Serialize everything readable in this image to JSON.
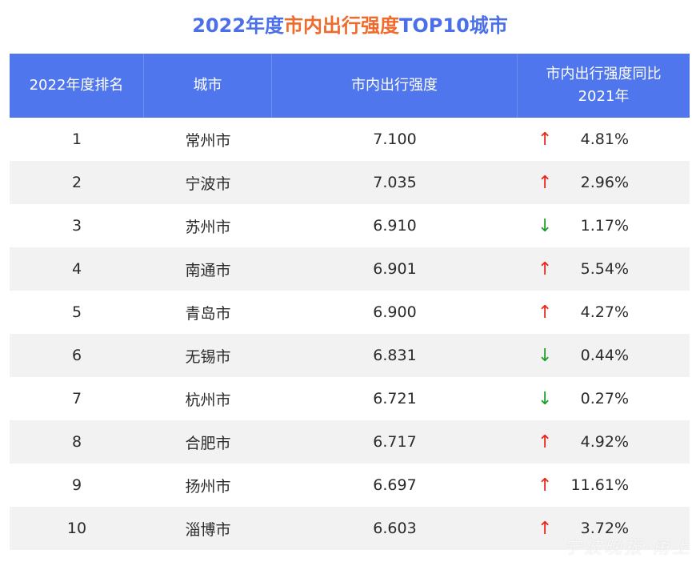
{
  "title": {
    "part1": "2022年度",
    "part2": "市内出行强度",
    "part3": "TOP10城市"
  },
  "colors": {
    "header_bg": "#4f76ec",
    "title_blue": "#4a6fe8",
    "title_orange": "#ef6b2c",
    "up": "#e8271a",
    "down": "#1e9e2a",
    "row_stripe": "#f2f2f2"
  },
  "headers": {
    "rank": "2022年度排名",
    "city": "城市",
    "intensity": "市内出行强度",
    "change_line1": "市内出行强度同比",
    "change_line2": "2021年"
  },
  "arrows": {
    "up": "↑",
    "down": "↓"
  },
  "chart_data": {
    "type": "table",
    "title": "2022年度市内出行强度TOP10城市",
    "columns": [
      "2022年度排名",
      "城市",
      "市内出行强度",
      "市内出行强度同比2021年"
    ],
    "rows": [
      {
        "rank": "1",
        "city": "常州市",
        "intensity": "7.100",
        "direction": "up",
        "change": "4.81%"
      },
      {
        "rank": "2",
        "city": "宁波市",
        "intensity": "7.035",
        "direction": "up",
        "change": "2.96%"
      },
      {
        "rank": "3",
        "city": "苏州市",
        "intensity": "6.910",
        "direction": "down",
        "change": "1.17%"
      },
      {
        "rank": "4",
        "city": "南通市",
        "intensity": "6.901",
        "direction": "up",
        "change": "5.54%"
      },
      {
        "rank": "5",
        "city": "青岛市",
        "intensity": "6.900",
        "direction": "up",
        "change": "4.27%"
      },
      {
        "rank": "6",
        "city": "无锡市",
        "intensity": "6.831",
        "direction": "down",
        "change": "0.44%"
      },
      {
        "rank": "7",
        "city": "杭州市",
        "intensity": "6.721",
        "direction": "down",
        "change": "0.27%"
      },
      {
        "rank": "8",
        "city": "合肥市",
        "intensity": "6.717",
        "direction": "up",
        "change": "4.92%"
      },
      {
        "rank": "9",
        "city": "扬州市",
        "intensity": "6.697",
        "direction": "up",
        "change": "11.61%"
      },
      {
        "rank": "10",
        "city": "淄博市",
        "intensity": "6.603",
        "direction": "up",
        "change": "3.72%"
      }
    ]
  },
  "watermark": "宁波晚报·甬上"
}
